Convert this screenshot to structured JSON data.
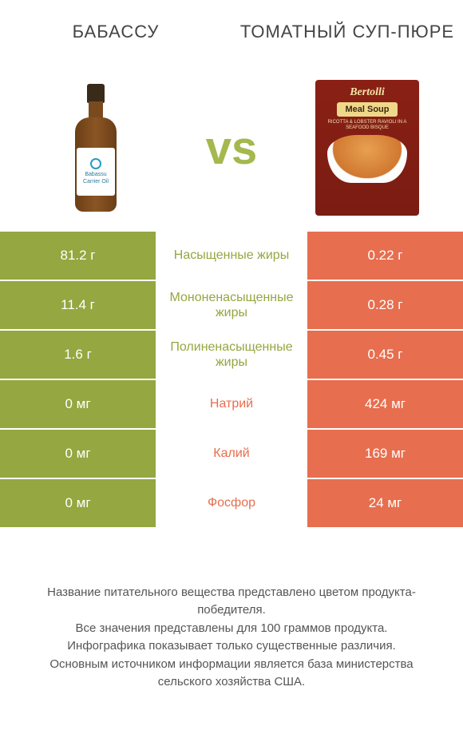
{
  "colors": {
    "left": "#94a740",
    "right": "#e76e4e",
    "vs": "#a4b84e",
    "bg": "#ffffff",
    "header_text": "#444444",
    "footer_text": "#555555"
  },
  "header": {
    "left": "БАБАССУ",
    "right": "ТОМАТНЫЙ СУП-ПЮРЕ"
  },
  "vs": "vs",
  "product_left": {
    "label_line1": "Babassu",
    "label_line2": "Carrier Oil"
  },
  "product_right": {
    "brand": "Bertolli",
    "title": "Meal Soup",
    "sub": "RICOTTA & LOBSTER RAVIOLI IN A SEAFOOD BISQUE"
  },
  "rows": [
    {
      "name": "Насыщенные жиры",
      "left": "81.2 г",
      "right": "0.22 г",
      "winner": "left"
    },
    {
      "name": "Мононенасыщенные жиры",
      "left": "11.4 г",
      "right": "0.28 г",
      "winner": "left"
    },
    {
      "name": "Полиненасыщенные жиры",
      "left": "1.6 г",
      "right": "0.45 г",
      "winner": "left"
    },
    {
      "name": "Натрий",
      "left": "0 мг",
      "right": "424 мг",
      "winner": "right"
    },
    {
      "name": "Калий",
      "left": "0 мг",
      "right": "169 мг",
      "winner": "right"
    },
    {
      "name": "Фосфор",
      "left": "0 мг",
      "right": "24 мг",
      "winner": "right"
    }
  ],
  "footer": {
    "l1": "Название питательного вещества представлено цветом продукта-победителя.",
    "l2": "Все значения представлены для 100 граммов продукта.",
    "l3": "Инфографика показывает только существенные различия.",
    "l4": "Основным источником информации является база министерства сельского хозяйства США."
  }
}
